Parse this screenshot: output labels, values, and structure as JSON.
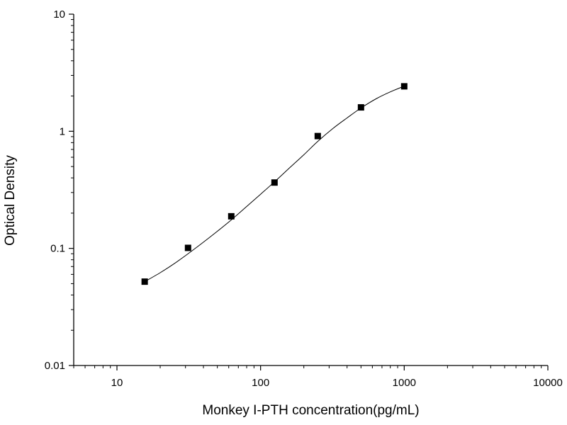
{
  "chart_data": {
    "type": "scatter",
    "xlabel": "Monkey I-PTH concentration(pg/mL)",
    "ylabel": "Optical Density",
    "x_scale": "log",
    "y_scale": "log",
    "xlim": [
      5,
      10000
    ],
    "ylim": [
      0.01,
      10
    ],
    "x_ticks": [
      10,
      100,
      1000,
      10000
    ],
    "x_tick_labels": [
      "10",
      "100",
      "1000",
      "10000"
    ],
    "y_ticks": [
      0.01,
      0.1,
      1,
      10
    ],
    "y_tick_labels": [
      "0.01",
      "0.1",
      "1",
      "10"
    ],
    "grid": false,
    "legend": "none",
    "series": [
      {
        "x": [
          15.6,
          31.25,
          62.5,
          125,
          250,
          500,
          1000
        ],
        "y": [
          0.052,
          0.101,
          0.188,
          0.365,
          0.91,
          1.6,
          2.42
        ],
        "marker": "square",
        "color": "#000000"
      }
    ],
    "fit_curve": {
      "x": [
        15.6,
        20,
        25,
        31.25,
        40,
        50,
        62.5,
        80,
        100,
        125,
        160,
        200,
        250,
        320,
        400,
        500,
        640,
        800,
        1000
      ],
      "y": [
        0.052,
        0.062,
        0.074,
        0.09,
        0.113,
        0.14,
        0.175,
        0.228,
        0.29,
        0.37,
        0.49,
        0.63,
        0.82,
        1.06,
        1.3,
        1.58,
        1.9,
        2.17,
        2.43
      ],
      "color": "#000000"
    }
  }
}
